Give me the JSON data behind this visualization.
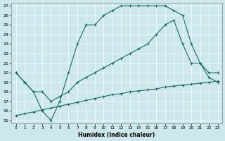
{
  "title": "",
  "xlabel": "Humidex (Indice chaleur)",
  "ylabel": "",
  "bg_color": "#cde8ec",
  "line_color": "#1a6b60",
  "xlim": [
    0,
    23
  ],
  "ylim": [
    15,
    27
  ],
  "xticks": [
    0,
    1,
    2,
    3,
    4,
    5,
    6,
    7,
    8,
    9,
    10,
    11,
    12,
    13,
    14,
    15,
    16,
    17,
    18,
    19,
    20,
    21,
    22,
    23
  ],
  "yticks": [
    15,
    16,
    17,
    18,
    19,
    20,
    21,
    22,
    23,
    24,
    25,
    26,
    27
  ],
  "line1_x": [
    0,
    1,
    2,
    3,
    4,
    5,
    6,
    7,
    8,
    9,
    10,
    11,
    12,
    13,
    14,
    15,
    16,
    17,
    18,
    19,
    20,
    21,
    22,
    23
  ],
  "line1_y": [
    15.5,
    15.7,
    15.9,
    16.1,
    16.3,
    16.5,
    16.7,
    16.9,
    17.1,
    17.3,
    17.5,
    17.7,
    17.8,
    18.0,
    18.1,
    18.2,
    18.3,
    18.5,
    18.6,
    18.7,
    18.8,
    18.9,
    19.0,
    19.1
  ],
  "line2_x": [
    0,
    1,
    2,
    3,
    4,
    5,
    6,
    7,
    8,
    9,
    10,
    11,
    12,
    13,
    14,
    15,
    16,
    17,
    18,
    19,
    20,
    21,
    22,
    23
  ],
  "line2_y": [
    20.0,
    19.0,
    18.0,
    18.0,
    17.0,
    17.5,
    18.0,
    19.0,
    19.5,
    20.0,
    20.5,
    21.0,
    21.5,
    22.0,
    22.5,
    23.0,
    24.0,
    25.0,
    25.5,
    23.0,
    21.0,
    21.0,
    19.5,
    19.0
  ],
  "line3_x": [
    0,
    1,
    2,
    3,
    4,
    5,
    6,
    7,
    8,
    9,
    10,
    11,
    12,
    13,
    14,
    15,
    16,
    17,
    18,
    19,
    20,
    21,
    22,
    23
  ],
  "line3_y": [
    20.0,
    19.0,
    18.0,
    16.0,
    15.0,
    17.0,
    20.0,
    23.0,
    25.0,
    25.0,
    26.0,
    26.5,
    27.0,
    27.0,
    27.0,
    27.0,
    27.0,
    27.0,
    26.5,
    26.0,
    23.0,
    21.0,
    20.0,
    20.0
  ]
}
